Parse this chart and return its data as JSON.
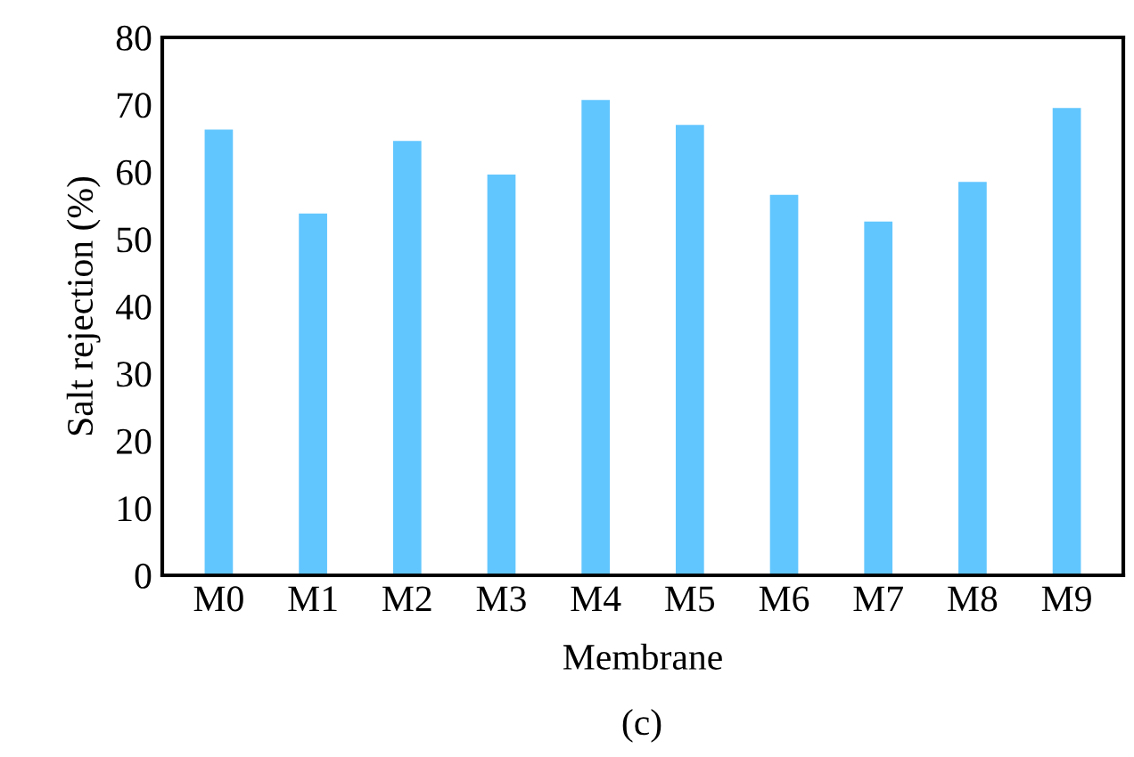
{
  "chart_data": {
    "type": "bar",
    "xlabel": "Membrane",
    "ylabel": "Salt rejection (%)",
    "categories": [
      "M0",
      "M1",
      "M2",
      "M3",
      "M4",
      "M5",
      "M6",
      "M7",
      "M8",
      "M9"
    ],
    "values": [
      66.3,
      53.8,
      64.6,
      59.6,
      70.7,
      67.0,
      56.6,
      52.6,
      58.5,
      69.5
    ],
    "color": "#62c6fe",
    "ylim": [
      0,
      80
    ],
    "yticks": [
      0,
      10,
      20,
      30,
      40,
      50,
      60,
      70,
      80
    ],
    "grid": false,
    "annotations": [
      "(c)"
    ]
  }
}
